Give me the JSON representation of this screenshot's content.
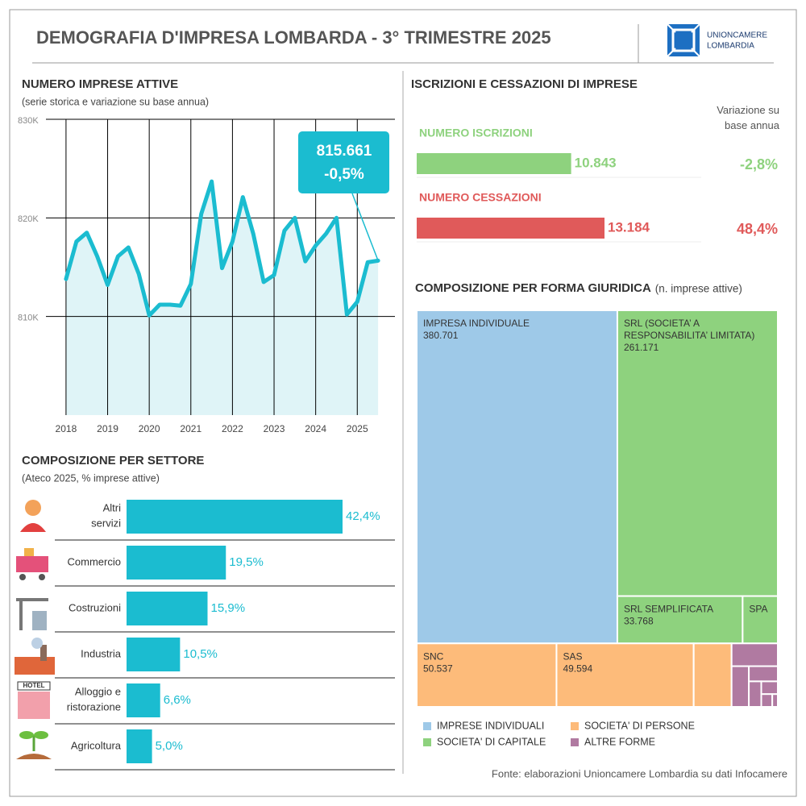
{
  "header": {
    "title": "DEMOGRAFIA D'IMPRESA LOMBARDA - 3° TRIMESTRE 2025",
    "logo": [
      "UNIONCAMERE",
      "LOMBARDIA"
    ]
  },
  "source": "Fonte: elaborazioni Unioncamere Lombardia su dati Infocamere",
  "chart_data": [
    {
      "type": "line",
      "title": "NUMERO IMPRESE ATTIVE",
      "subtitle": "(serie storica e variazione su base annua)",
      "x": [
        2018,
        2018.25,
        2018.5,
        2018.75,
        2019,
        2019.25,
        2019.5,
        2019.75,
        2020,
        2020.25,
        2020.5,
        2020.75,
        2021,
        2021.25,
        2021.5,
        2021.75,
        2022,
        2022.25,
        2022.5,
        2022.75,
        2023,
        2023.25,
        2023.5,
        2023.75,
        2024,
        2024.25,
        2024.5,
        2024.75,
        2025,
        2025.25,
        2025.5
      ],
      "values": [
        813800,
        817600,
        818500,
        816100,
        813200,
        816100,
        817000,
        814300,
        810100,
        811200,
        811200,
        811100,
        813300,
        820400,
        823700,
        814900,
        817600,
        822100,
        818400,
        813500,
        814200,
        818700,
        820000,
        815600,
        817200,
        818400,
        820000,
        810200,
        811500,
        815500,
        815661
      ],
      "color": "#1bbcd0",
      "area_color": "#dff4f7",
      "xlim": [
        2017.75,
        2025.75
      ],
      "xticks": [
        2018,
        2019,
        2020,
        2021,
        2022,
        2023,
        2024,
        2025
      ],
      "ylim": [
        800000,
        830000
      ],
      "yticks": [
        {
          "value": 810000,
          "label": "810K"
        },
        {
          "value": 820000,
          "label": "820K"
        },
        {
          "value": 830000,
          "label": "830K"
        }
      ],
      "grid": true,
      "annotation": {
        "label": "815.661",
        "change": -0.5,
        "change_label": "-0,5%"
      }
    },
    {
      "type": "bar",
      "title": "ISCRIZIONI E CESSAZIONI DI IMPRESE",
      "change_header": "Variazione su base annua",
      "categories": [
        "NUMERO ISCRIZIONI",
        "NUMERO CESSAZIONI"
      ],
      "values": [
        10843,
        13184
      ],
      "value_labels": [
        "10.843",
        "13.184"
      ],
      "colors": [
        "#8ed27e",
        "#e05a5a"
      ],
      "changes": [
        -2.8,
        48.4
      ],
      "change_labels": [
        "-2,8%",
        "48,4%"
      ]
    },
    {
      "type": "bar",
      "title": "COMPOSIZIONE PER SETTORE",
      "subtitle": "(Ateco 2025, % imprese attive)",
      "categories": [
        "Altri servizi",
        "Commercio",
        "Costruzioni",
        "Industria",
        "Alloggio e ristorazione",
        "Agricoltura"
      ],
      "values": [
        42.4,
        19.5,
        15.9,
        10.5,
        6.6,
        5.0
      ],
      "value_labels": [
        "42,4%",
        "19,5%",
        "15,9%",
        "10,5%",
        "6,6%",
        "5,0%"
      ],
      "color": "#1bbcd0"
    },
    {
      "type": "treemap",
      "title": "COMPOSIZIONE PER FORMA GIURIDICA",
      "subtitle": "(n. imprese attive)",
      "groups": [
        {
          "name": "IMPRESE INDIVIDUALI",
          "color": "#9ec9e8",
          "items": [
            {
              "label": "IMPRESA INDIVIDUALE",
              "value": 380701,
              "value_label": "380.701"
            }
          ]
        },
        {
          "name": "SOCIETA' DI CAPITALE",
          "color": "#8ed27e",
          "items": [
            {
              "label": "SRL (SOCIETA’ A RESPONSABILITA’ LIMITATA)",
              "value": 261171,
              "value_label": "261.171"
            },
            {
              "label": "SRL SEMPLIFICATA",
              "value": 33768,
              "value_label": "33.768"
            },
            {
              "label": "SPA",
              "value": 9480
            }
          ]
        },
        {
          "name": "SOCIETA' DI PERSONE",
          "color": "#fdbb7a",
          "items": [
            {
              "label": "SNC",
              "value": 50537,
              "value_label": "50.537"
            },
            {
              "label": "SAS",
              "value": 49594,
              "value_label": "49.594"
            },
            {
              "label": null,
              "value": 13700
            }
          ]
        },
        {
          "name": "ALTRE FORME",
          "color": "#b07aa1",
          "items": [
            {
              "label": null,
              "value": 6000
            },
            {
              "label": null,
              "value": 4000
            },
            {
              "label": null,
              "value": 2500
            },
            {
              "label": null,
              "value": 1800
            },
            {
              "label": null,
              "value": 1200
            },
            {
              "label": null,
              "value": 800
            },
            {
              "label": null,
              "value": 400
            }
          ]
        }
      ]
    }
  ]
}
